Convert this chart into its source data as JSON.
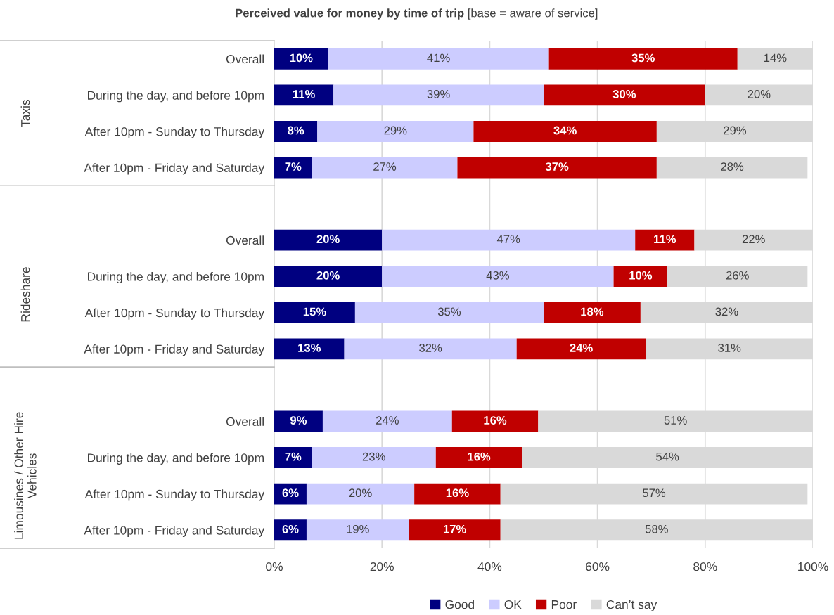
{
  "chart_data": {
    "type": "bar",
    "orientation": "horizontal",
    "stacked": true,
    "title": "Perceived value for money by time of trip",
    "subtitle": "[base = aware of service]",
    "categories": [
      "Overall",
      "During the day, and before 10pm",
      "After 10pm - Sunday to Thursday",
      "After 10pm - Friday and Saturday",
      null,
      "Overall",
      "During the day, and before 10pm",
      "After 10pm - Sunday to Thursday",
      "After 10pm - Friday and Saturday",
      null,
      "Overall",
      "During the day, and before 10pm",
      "After 10pm - Sunday to Thursday",
      "After 10pm - Friday and Saturday"
    ],
    "annotations": [
      "Taxis",
      "Rideshare",
      "Limousines / Other Hire\nVehicles"
    ],
    "series": [
      {
        "name": "Good",
        "color": "#000080",
        "values": [
          10,
          11,
          8,
          7,
          null,
          20,
          20,
          15,
          13,
          null,
          9,
          7,
          6,
          6
        ],
        "value_labels": [
          "10%",
          "11%",
          "8%",
          "7%",
          null,
          "20%",
          "20%",
          "15%",
          "13%",
          null,
          "9%",
          "7%",
          "6%",
          "6%"
        ]
      },
      {
        "name": "OK",
        "color": "#ccccff",
        "values": [
          41,
          39,
          29,
          27,
          null,
          47,
          43,
          35,
          32,
          null,
          24,
          23,
          20,
          19
        ],
        "value_labels": [
          "41%",
          "39%",
          "29%",
          "27%",
          null,
          "47%",
          "43%",
          "35%",
          "32%",
          null,
          "24%",
          "23%",
          "20%",
          "19%"
        ]
      },
      {
        "name": "Poor",
        "color": "#c00000",
        "values": [
          35,
          30,
          34,
          37,
          null,
          11,
          10,
          18,
          24,
          null,
          16,
          16,
          16,
          17
        ],
        "value_labels": [
          "35%",
          "30%",
          "34%",
          "37%",
          null,
          "11%",
          "10%",
          "18%",
          "24%",
          null,
          "16%",
          "16%",
          "16%",
          "17%"
        ]
      },
      {
        "name": "Can’t say",
        "color": "#d9d9d9",
        "values": [
          14,
          20,
          29,
          28,
          null,
          22,
          26,
          32,
          31,
          null,
          51,
          54,
          57,
          58
        ],
        "value_labels": [
          "14%",
          "20%",
          "29%",
          "28%",
          null,
          "22%",
          "26%",
          "32%",
          "31%",
          null,
          "51%",
          "54%",
          "57%",
          "58%"
        ]
      }
    ],
    "xlim": [
      0,
      100
    ],
    "xticks": [
      {
        "value": 0,
        "label": "0%"
      },
      {
        "value": 20,
        "label": "20%"
      },
      {
        "value": 40,
        "label": "40%"
      },
      {
        "value": 60,
        "label": "60%"
      },
      {
        "value": 80,
        "label": "80%"
      },
      {
        "value": 100,
        "label": "100%"
      }
    ],
    "grid": "x",
    "legend": "bottom"
  }
}
